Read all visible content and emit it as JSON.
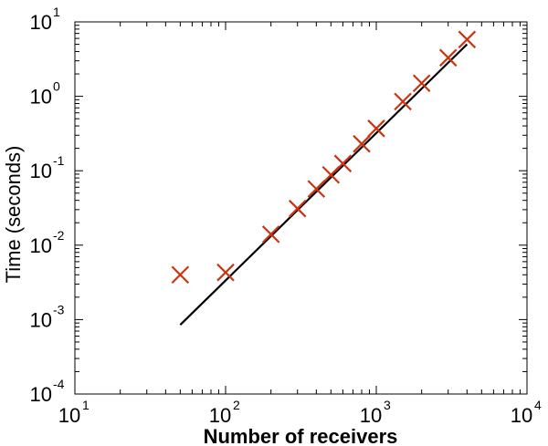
{
  "chart_data": {
    "type": "scatter",
    "title": "",
    "xlabel": "Number of receivers",
    "ylabel": "Time (seconds)",
    "xscale": "log",
    "yscale": "log",
    "xlim": [
      10,
      10000
    ],
    "ylim": [
      0.0001,
      10
    ],
    "grid": false,
    "legend": "none",
    "x_ticks": [
      {
        "base": "10",
        "exp": "1",
        "value": 10
      },
      {
        "base": "10",
        "exp": "2",
        "value": 100
      },
      {
        "base": "10",
        "exp": "3",
        "value": 1000
      },
      {
        "base": "10",
        "exp": "4",
        "value": 10000
      }
    ],
    "y_ticks": [
      {
        "base": "10",
        "exp": "-4",
        "value": 0.0001
      },
      {
        "base": "10",
        "exp": "-3",
        "value": 0.001
      },
      {
        "base": "10",
        "exp": "-2",
        "value": 0.01
      },
      {
        "base": "10",
        "exp": "-1",
        "value": 0.1
      },
      {
        "base": "10",
        "exp": "0",
        "value": 1
      },
      {
        "base": "10",
        "exp": "1",
        "value": 10
      }
    ],
    "series": [
      {
        "type": "scatter",
        "marker": "x",
        "color": "#cc3311",
        "x": [
          50,
          100,
          200,
          300,
          400,
          500,
          600,
          800,
          1000,
          1500,
          2000,
          3000,
          4000
        ],
        "y": [
          0.004,
          0.0043,
          0.014,
          0.031,
          0.057,
          0.088,
          0.125,
          0.23,
          0.37,
          0.85,
          1.5,
          3.3,
          5.8
        ]
      },
      {
        "type": "line",
        "color": "#000000",
        "x": [
          50,
          4000
        ],
        "y": [
          0.00085,
          5.0
        ]
      }
    ]
  }
}
